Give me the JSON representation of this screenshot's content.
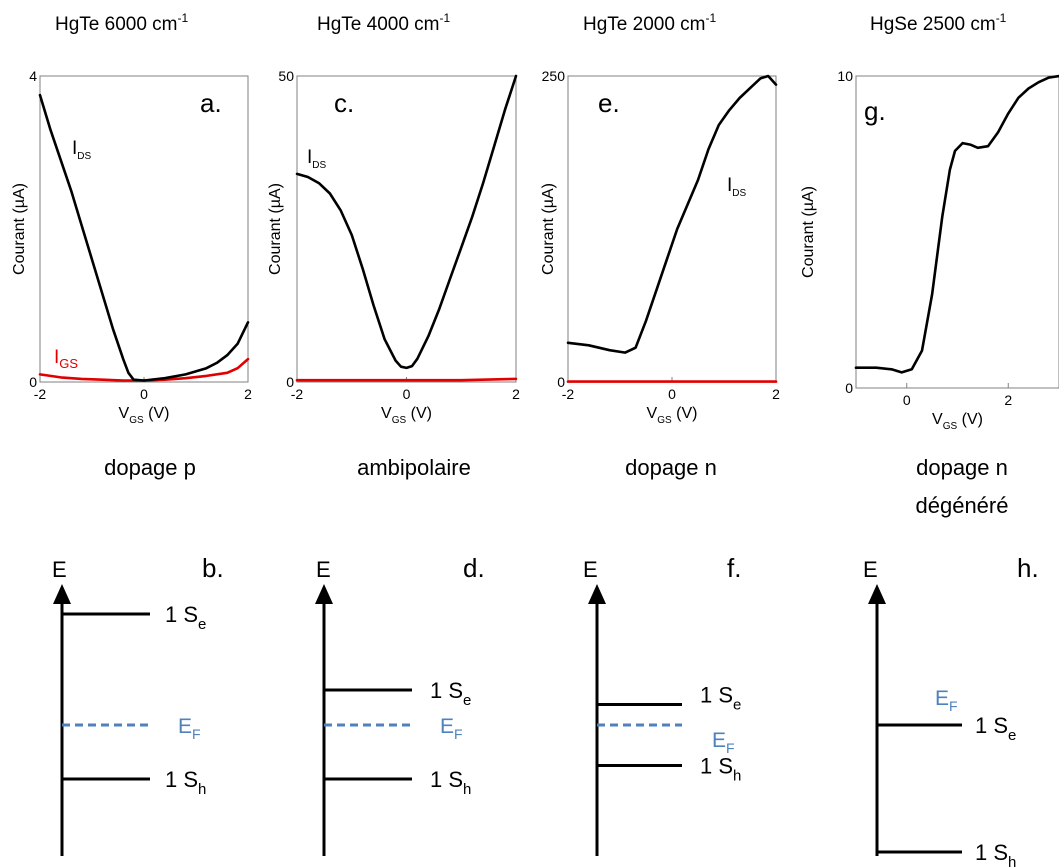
{
  "colors": {
    "ids": "#000000",
    "igs": "#e00000",
    "fermi": "#4f81bd",
    "frame": "#808080"
  },
  "chart_data": [
    {
      "type": "line",
      "title": "HgTe 6000 cm",
      "title_sup": "-1",
      "panel_letter": "a.",
      "caption": [
        "dopage p"
      ],
      "ylabel": "Courant (µA)",
      "xlabel": {
        "v": "V",
        "sub": "GS",
        "unit": " (V)"
      },
      "xlim": [
        -2,
        2
      ],
      "ylim": [
        0,
        4
      ],
      "xticks": [
        -2,
        0,
        2
      ],
      "yticks": [
        0,
        4
      ],
      "series": [
        {
          "name": "I",
          "name_sub": "DS",
          "color": "#000000",
          "x": [
            -2.0,
            -1.8,
            -1.6,
            -1.4,
            -1.2,
            -1.0,
            -0.8,
            -0.6,
            -0.4,
            -0.3,
            -0.2,
            0.0,
            0.4,
            0.8,
            1.2,
            1.4,
            1.6,
            1.8,
            2.0
          ],
          "y": [
            3.75,
            3.3,
            2.9,
            2.5,
            2.05,
            1.6,
            1.15,
            0.7,
            0.3,
            0.12,
            0.03,
            0.02,
            0.05,
            0.1,
            0.18,
            0.25,
            0.35,
            0.5,
            0.78
          ]
        },
        {
          "name": "I",
          "name_sub": "GS",
          "color": "#e00000",
          "x": [
            -2.0,
            -1.6,
            -1.2,
            -0.8,
            -0.4,
            0.0,
            0.4,
            0.8,
            1.2,
            1.6,
            1.8,
            2.0
          ],
          "y": [
            0.1,
            0.06,
            0.04,
            0.03,
            0.02,
            0.02,
            0.03,
            0.05,
            0.08,
            0.12,
            0.18,
            0.3
          ]
        }
      ]
    },
    {
      "type": "line",
      "title": "HgTe 4000 cm",
      "title_sup": "-1",
      "panel_letter": "c.",
      "caption": [
        "ambipolaire"
      ],
      "ylabel": "Courant (µA)",
      "xlabel": {
        "v": "V",
        "sub": "GS",
        "unit": " (V)"
      },
      "xlim": [
        -2,
        2
      ],
      "ylim": [
        0,
        50
      ],
      "xticks": [
        -2,
        0,
        2
      ],
      "yticks": [
        0,
        50
      ],
      "series": [
        {
          "name": "I",
          "name_sub": "DS",
          "color": "#000000",
          "x": [
            -2.0,
            -1.8,
            -1.6,
            -1.4,
            -1.2,
            -1.0,
            -0.8,
            -0.6,
            -0.4,
            -0.2,
            -0.1,
            0.0,
            0.1,
            0.2,
            0.4,
            0.6,
            0.8,
            1.0,
            1.2,
            1.4,
            1.6,
            1.8,
            2.0
          ],
          "y": [
            34.0,
            33.5,
            32.5,
            30.8,
            28.0,
            24.0,
            18.5,
            12.5,
            7.0,
            3.5,
            2.5,
            2.3,
            2.6,
            3.8,
            7.5,
            12.0,
            17.0,
            22.0,
            27.0,
            32.5,
            38.5,
            44.5,
            50.0
          ]
        },
        {
          "name": "I",
          "name_sub": "GS",
          "color": "#e00000",
          "x": [
            -2.0,
            -1.0,
            0.0,
            1.0,
            2.0
          ],
          "y": [
            0.3,
            0.3,
            0.3,
            0.3,
            0.5
          ]
        }
      ]
    },
    {
      "type": "line",
      "title": "HgTe 2000 cm",
      "title_sup": "-1",
      "panel_letter": "e.",
      "caption": [
        "dopage n"
      ],
      "ylabel": "Courant (µA)",
      "xlabel": {
        "v": "V",
        "sub": "GS",
        "unit": " (V)"
      },
      "xlim": [
        -2,
        2
      ],
      "ylim": [
        0,
        250
      ],
      "xticks": [
        -2,
        0,
        2
      ],
      "yticks": [
        0,
        250
      ],
      "series": [
        {
          "name": "I",
          "name_sub": "DS",
          "color": "#000000",
          "x": [
            -2.0,
            -1.6,
            -1.2,
            -0.9,
            -0.7,
            -0.5,
            -0.3,
            -0.1,
            0.1,
            0.3,
            0.5,
            0.7,
            0.9,
            1.1,
            1.3,
            1.5,
            1.7,
            1.85,
            2.0
          ],
          "y": [
            32.0,
            30.0,
            26.0,
            24.0,
            28.0,
            50.0,
            75.0,
            100.0,
            125.0,
            145.0,
            165.0,
            190.0,
            210.0,
            222.0,
            232.0,
            240.0,
            248.0,
            250.0,
            243.0
          ]
        },
        {
          "name": "",
          "name_sub": "",
          "color": "#e00000",
          "x": [
            -2.0,
            2.0
          ],
          "y": [
            0.3,
            0.3
          ]
        }
      ]
    },
    {
      "type": "line",
      "title": "HgSe 2500 cm",
      "title_sup": "-1",
      "panel_letter": "g.",
      "caption": [
        "dopage n",
        "dégénéré"
      ],
      "ylabel": "Courant (µA)",
      "xlabel": {
        "v": "V",
        "sub": "GS",
        "unit": " (V)"
      },
      "xlim": [
        -1,
        3
      ],
      "ylim": [
        0,
        10
      ],
      "xticks": [
        0,
        2
      ],
      "yticks": [
        0,
        10
      ],
      "series": [
        {
          "name": "",
          "name_sub": "",
          "color": "#000000",
          "x": [
            -1.0,
            -0.6,
            -0.3,
            -0.1,
            0.1,
            0.3,
            0.5,
            0.7,
            0.85,
            0.95,
            1.1,
            1.25,
            1.4,
            1.6,
            1.8,
            2.0,
            2.2,
            2.4,
            2.6,
            2.8,
            3.0
          ],
          "y": [
            0.65,
            0.65,
            0.6,
            0.5,
            0.6,
            1.2,
            3.0,
            5.5,
            7.0,
            7.6,
            7.85,
            7.8,
            7.7,
            7.75,
            8.2,
            8.8,
            9.3,
            9.6,
            9.8,
            9.95,
            10.0
          ]
        }
      ]
    }
  ],
  "band_diagrams": [
    {
      "axis_label": "E",
      "panel_letter": "b.",
      "levels": [
        {
          "label": "1 S",
          "sub": "e",
          "value": 0.88
        },
        {
          "label": "1 S",
          "sub": "h",
          "value": 0.3
        }
      ],
      "fermi": {
        "label": "E",
        "sub": "F",
        "value": 0.5
      }
    },
    {
      "axis_label": "E",
      "panel_letter": "d.",
      "levels": [
        {
          "label": "1 S",
          "sub": "e",
          "value": 0.62
        },
        {
          "label": "1 S",
          "sub": "h",
          "value": 0.3
        }
      ],
      "fermi": {
        "label": "E",
        "sub": "F",
        "value": 0.5
      }
    },
    {
      "axis_label": "E",
      "panel_letter": "f.",
      "levels": [
        {
          "label": "1 S",
          "sub": "e",
          "value": 0.57
        },
        {
          "label": "1 S",
          "sub": "h",
          "value": 0.35
        }
      ],
      "fermi": {
        "label": "E",
        "sub": "F",
        "value": 0.5
      }
    },
    {
      "axis_label": "E",
      "panel_letter": "h.",
      "levels": [
        {
          "label": "1 S",
          "sub": "e",
          "value": 0.5
        },
        {
          "label": "1 S",
          "sub": "h",
          "value": 0.0
        }
      ],
      "fermi": {
        "label": "E",
        "sub": "F",
        "value": 0.5
      }
    }
  ]
}
